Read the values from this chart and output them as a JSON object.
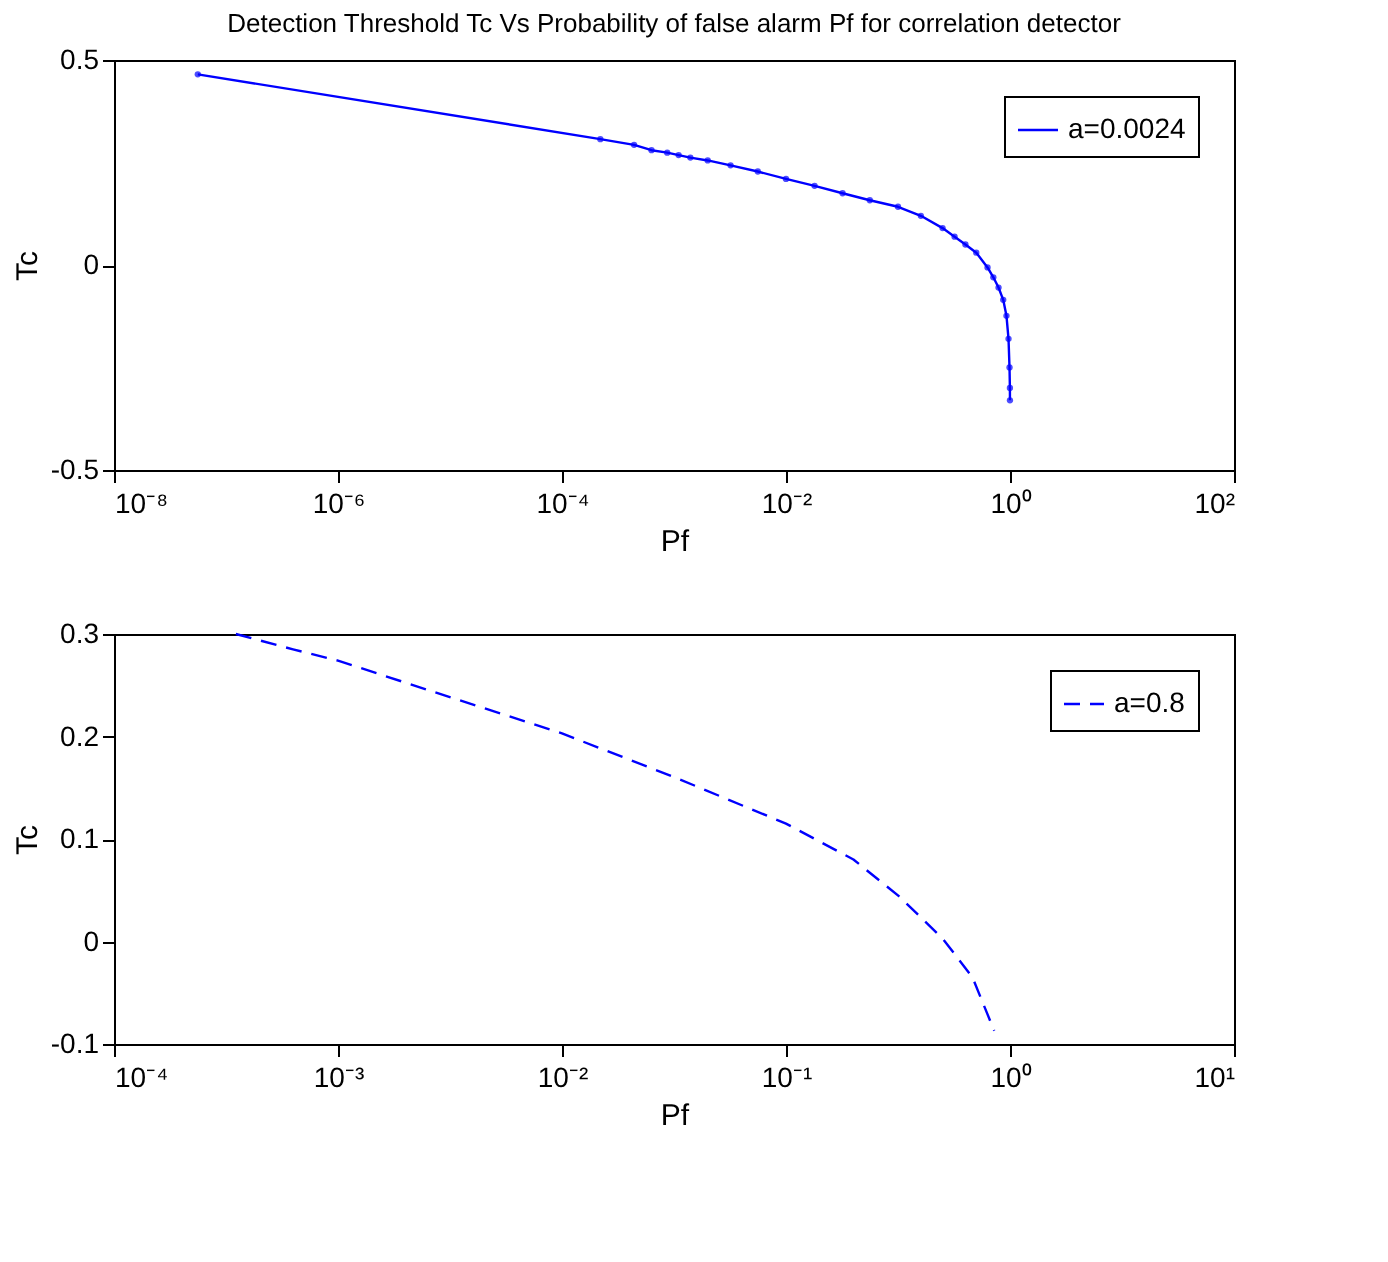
{
  "chart_data": [
    {
      "type": "line",
      "title": "Detection Threshold Tc Vs Probability of false alarm Pf for correlation detector",
      "xlabel": "Pf",
      "ylabel": "Tc",
      "log": "x",
      "grid": false,
      "legend": "top right",
      "marker": "circle",
      "line_style": "solid",
      "xlim": [
        1e-08,
        100
      ],
      "xticks": [
        {
          "value": 1e-08,
          "label": "10⁻⁸"
        },
        {
          "value": 1e-06,
          "label": "10⁻⁶"
        },
        {
          "value": 0.0001,
          "label": "10⁻⁴"
        },
        {
          "value": 0.01,
          "label": "10⁻²"
        },
        {
          "value": 1,
          "label": "10⁰"
        },
        {
          "value": 100,
          "label": "10²"
        }
      ],
      "ylim": [
        -0.5,
        0.5
      ],
      "yticks": [
        -0.5,
        0,
        0.5
      ],
      "series": [
        {
          "name": "a=0.0024",
          "color": "#0000ff",
          "x": [
            5.6e-08,
            0.00022,
            0.00044,
            0.00063,
            0.00087,
            0.0011,
            0.0014,
            0.002,
            0.0032,
            0.0056,
            0.01,
            0.018,
            0.032,
            0.056,
            0.1,
            0.16,
            0.25,
            0.32,
            0.4,
            0.5,
            0.63,
            0.71,
            0.79,
            0.87,
            0.93,
            0.97,
            0.99,
            0.998,
            0.999
          ],
          "values": [
            0.465,
            0.307,
            0.293,
            0.28,
            0.274,
            0.268,
            0.262,
            0.255,
            0.243,
            0.228,
            0.21,
            0.193,
            0.175,
            0.158,
            0.142,
            0.12,
            0.09,
            0.069,
            0.05,
            0.03,
            -0.006,
            -0.03,
            -0.055,
            -0.085,
            -0.124,
            -0.18,
            -0.25,
            -0.3,
            -0.33
          ]
        }
      ]
    },
    {
      "type": "line",
      "xlabel": "Pf",
      "ylabel": "Tc",
      "log": "x",
      "grid": false,
      "legend": "top right",
      "marker": "none",
      "line_style": "dashed",
      "xlim": [
        0.0001,
        10
      ],
      "xticks": [
        {
          "value": 0.0001,
          "label": "10⁻⁴"
        },
        {
          "value": 0.001,
          "label": "10⁻³"
        },
        {
          "value": 0.01,
          "label": "10⁻²"
        },
        {
          "value": 0.1,
          "label": "10⁻¹"
        },
        {
          "value": 1,
          "label": "10⁰"
        },
        {
          "value": 10,
          "label": "10¹"
        }
      ],
      "ylim": [
        -0.1,
        0.3
      ],
      "yticks": [
        -0.1,
        0,
        0.1,
        0.2,
        0.3
      ],
      "series": [
        {
          "name": "a=0.8",
          "color": "#0000ff",
          "x": [
            0.00035,
            0.00063,
            0.001,
            0.0032,
            0.01,
            0.032,
            0.1,
            0.2,
            0.32,
            0.5,
            0.68,
            0.85
          ],
          "values": [
            0.3,
            0.285,
            0.274,
            0.238,
            0.203,
            0.16,
            0.115,
            0.08,
            0.044,
            0.003,
            -0.035,
            -0.087
          ]
        }
      ]
    }
  ]
}
